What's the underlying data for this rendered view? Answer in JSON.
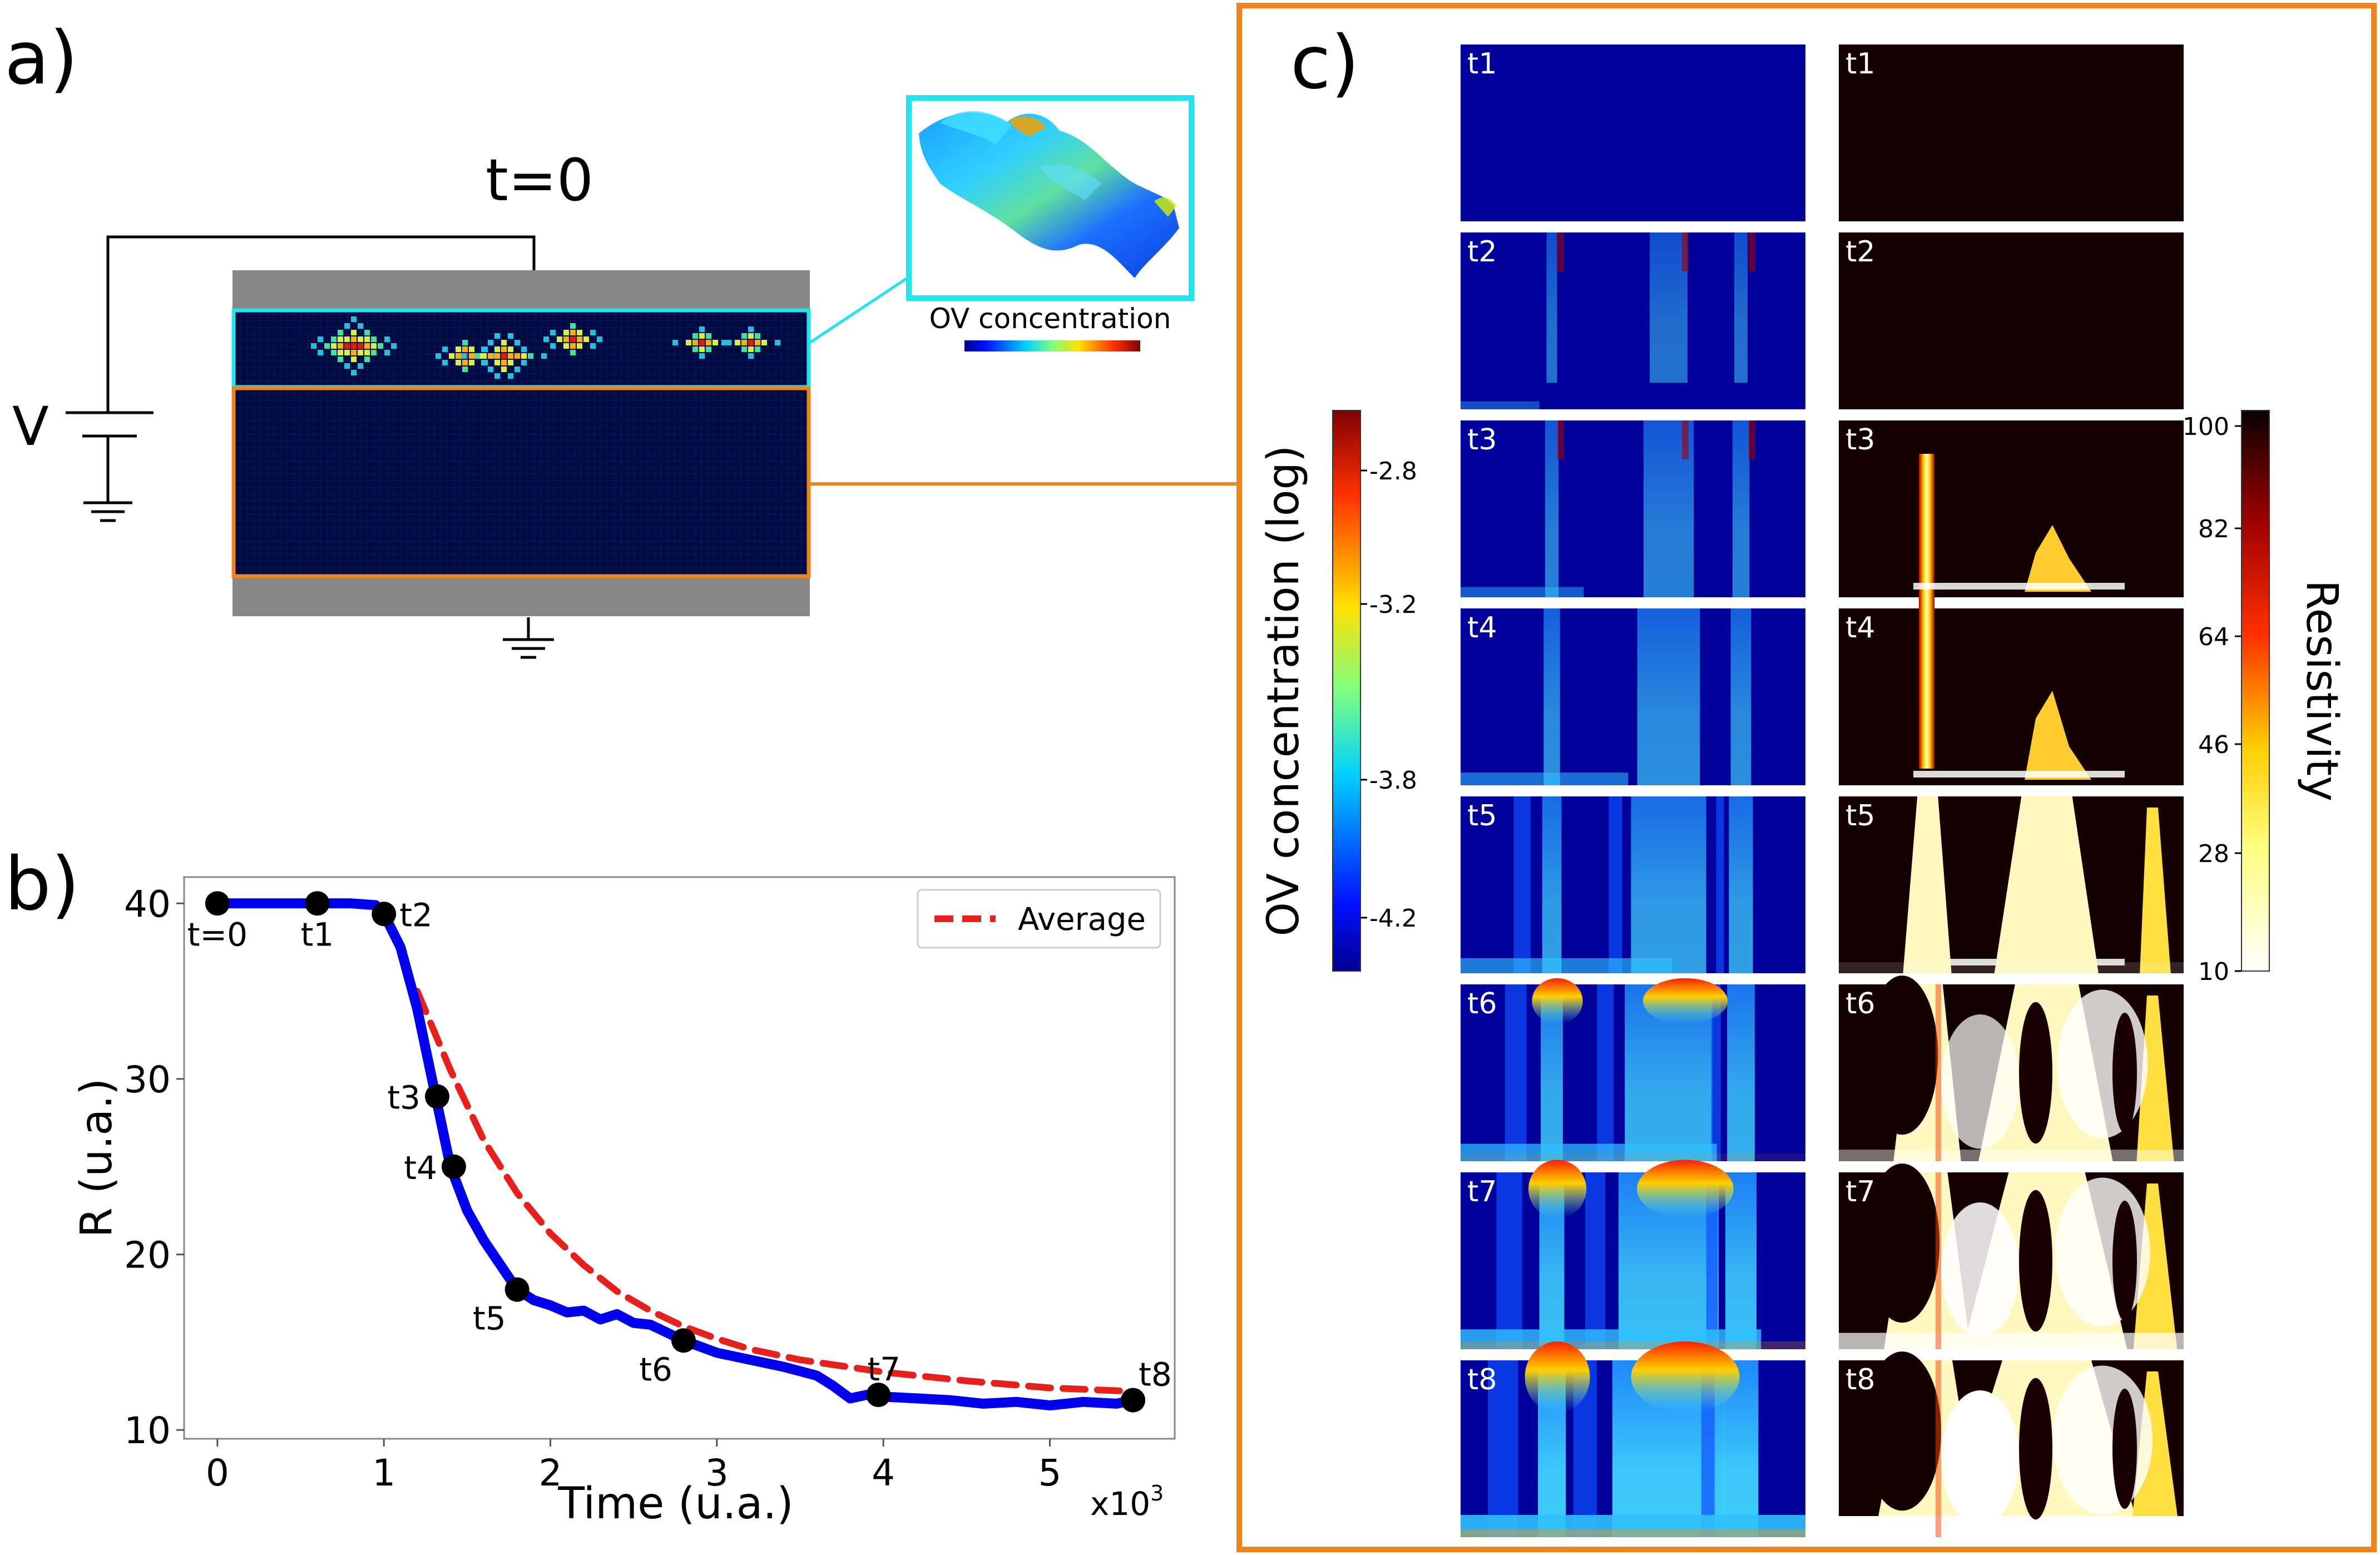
{
  "panel_a": {
    "label": "a)",
    "time_label": "t=0",
    "voltage_label": "V",
    "inset_caption": "OV concentration",
    "colors": {
      "cyan": "#22e4ee",
      "orange": "#f0841c",
      "electrode": "#878787",
      "matrix": "#000a3c"
    }
  },
  "panel_b": {
    "label": "b)",
    "legend_label": "Average",
    "x_multiplier": "x10",
    "x_multiplier_exp": "3"
  },
  "panel_c": {
    "label": "c)",
    "row_labels": [
      "t1",
      "t2",
      "t3",
      "t4",
      "t5",
      "t6",
      "t7",
      "t8"
    ],
    "ov_colorbar": {
      "label": "OV concentration (log)",
      "ticks": [
        "-2.8",
        "-3.2",
        "-3.8",
        "-4.2"
      ]
    },
    "res_colorbar": {
      "label": "Resistivity",
      "ticks": [
        "100",
        "82",
        "64",
        "46",
        "28",
        "10"
      ]
    },
    "frame_color": "#f0841c"
  },
  "chart_data": {
    "type": "line",
    "title": "",
    "xlabel": "Time (u.a.)",
    "ylabel": "R (u.a.)",
    "xlim": [
      -0.2,
      5.75
    ],
    "ylim": [
      9.5,
      41.5
    ],
    "xticks": [
      0,
      1,
      2,
      3,
      4,
      5
    ],
    "yticks": [
      10,
      20,
      30,
      40
    ],
    "series": [
      {
        "name": "R",
        "color": "#0000ee",
        "x": [
          0,
          0.2,
          0.4,
          0.6,
          0.8,
          0.95,
          1.0,
          1.1,
          1.2,
          1.3,
          1.4,
          1.5,
          1.6,
          1.7,
          1.8,
          1.9,
          2.0,
          2.1,
          2.2,
          2.3,
          2.4,
          2.5,
          2.6,
          2.8,
          3.0,
          3.2,
          3.4,
          3.6,
          3.7,
          3.8,
          3.9,
          4.0,
          4.2,
          4.4,
          4.6,
          4.8,
          5.0,
          5.2,
          5.4,
          5.5
        ],
        "y": [
          40,
          40,
          40,
          40,
          40,
          39.9,
          39.4,
          37.5,
          34,
          29.5,
          25,
          22.5,
          20.8,
          19.4,
          18,
          17.4,
          17.1,
          16.7,
          16.8,
          16.3,
          16.6,
          16.1,
          16.0,
          15.1,
          14.4,
          14.0,
          13.6,
          13.1,
          12.5,
          11.8,
          12.0,
          11.9,
          11.8,
          11.7,
          11.5,
          11.6,
          11.4,
          11.6,
          11.5,
          11.7
        ]
      },
      {
        "name": "Average",
        "color": "#e8201c",
        "dashed": true,
        "x": [
          1.2,
          1.4,
          1.6,
          1.8,
          2.0,
          2.2,
          2.4,
          2.6,
          2.8,
          3.0,
          3.2,
          3.5,
          4.0,
          4.5,
          5.0,
          5.5
        ],
        "y": [
          35,
          30.5,
          26.5,
          23.5,
          21.2,
          19.4,
          17.9,
          16.8,
          15.9,
          15.2,
          14.6,
          14.0,
          13.3,
          12.8,
          12.4,
          12.2
        ]
      }
    ],
    "markers": [
      {
        "label": "t=0",
        "x": 0.0,
        "y": 40.0,
        "pos": "below"
      },
      {
        "label": "t1",
        "x": 0.6,
        "y": 40.0,
        "pos": "below"
      },
      {
        "label": "t2",
        "x": 1.0,
        "y": 39.4,
        "pos": "right"
      },
      {
        "label": "t3",
        "x": 1.32,
        "y": 29.0,
        "pos": "left"
      },
      {
        "label": "t4",
        "x": 1.42,
        "y": 25.0,
        "pos": "left"
      },
      {
        "label": "t5",
        "x": 1.8,
        "y": 18.0,
        "pos": "below-left"
      },
      {
        "label": "t6",
        "x": 2.8,
        "y": 15.1,
        "pos": "below-left"
      },
      {
        "label": "t7",
        "x": 3.97,
        "y": 12.0,
        "pos": "above"
      },
      {
        "label": "t8",
        "x": 5.5,
        "y": 11.7,
        "pos": "above-right"
      }
    ],
    "legend": "top-right"
  }
}
